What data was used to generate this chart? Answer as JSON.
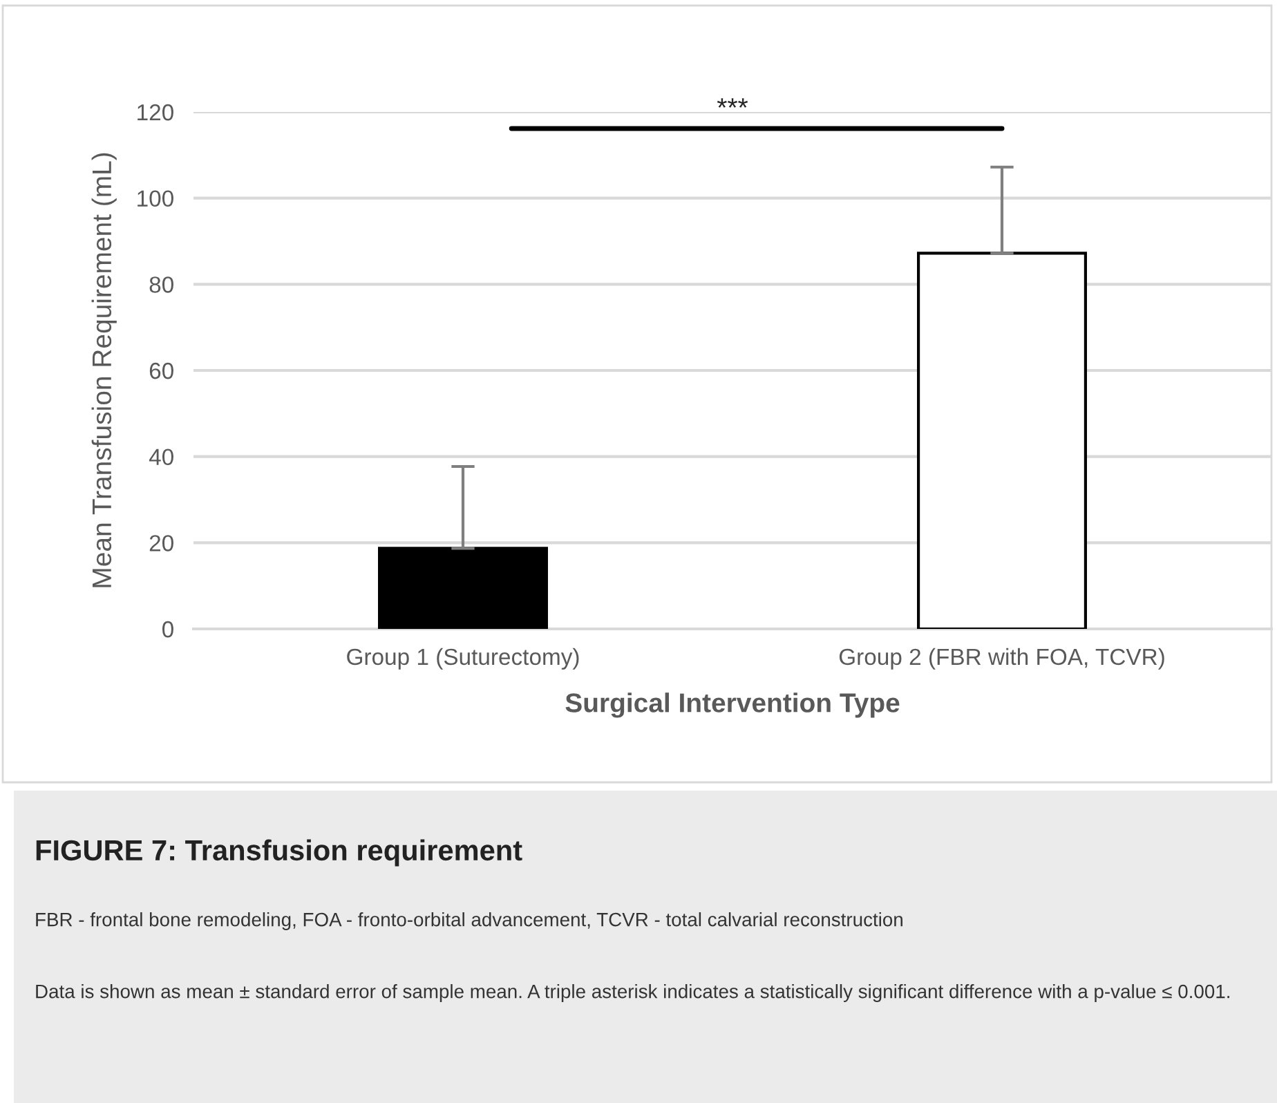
{
  "chart_data": {
    "type": "bar",
    "title": "FIGURE 7: Transfusion requirement",
    "xlabel": "Surgical Intervention Type",
    "ylabel": "Mean Transfusion Requirement (mL)",
    "categories": [
      "Group 1 (Suturectomy)",
      "Group 2 (FBR with FOA, TCVR)"
    ],
    "values": [
      18.7,
      87.2
    ],
    "errors": [
      [
        18.7,
        37.7
      ],
      [
        87.2,
        107.2
      ]
    ],
    "colors": [
      "#000000",
      "#ffffff"
    ],
    "ylim": [
      0,
      120
    ],
    "yticks": [
      0,
      20,
      40,
      60,
      80,
      100,
      120
    ],
    "grid": "y",
    "annotations": [
      "***",
      "FBR - frontal bone remodeling, FOA - fronto-orbital advancement, TCVR - total calvarial reconstruction",
      "Data is shown as mean ± standard error of sample mean. A triple asterisk indicates a statistically significant difference with a p-value ≤ 0.001."
    ]
  }
}
